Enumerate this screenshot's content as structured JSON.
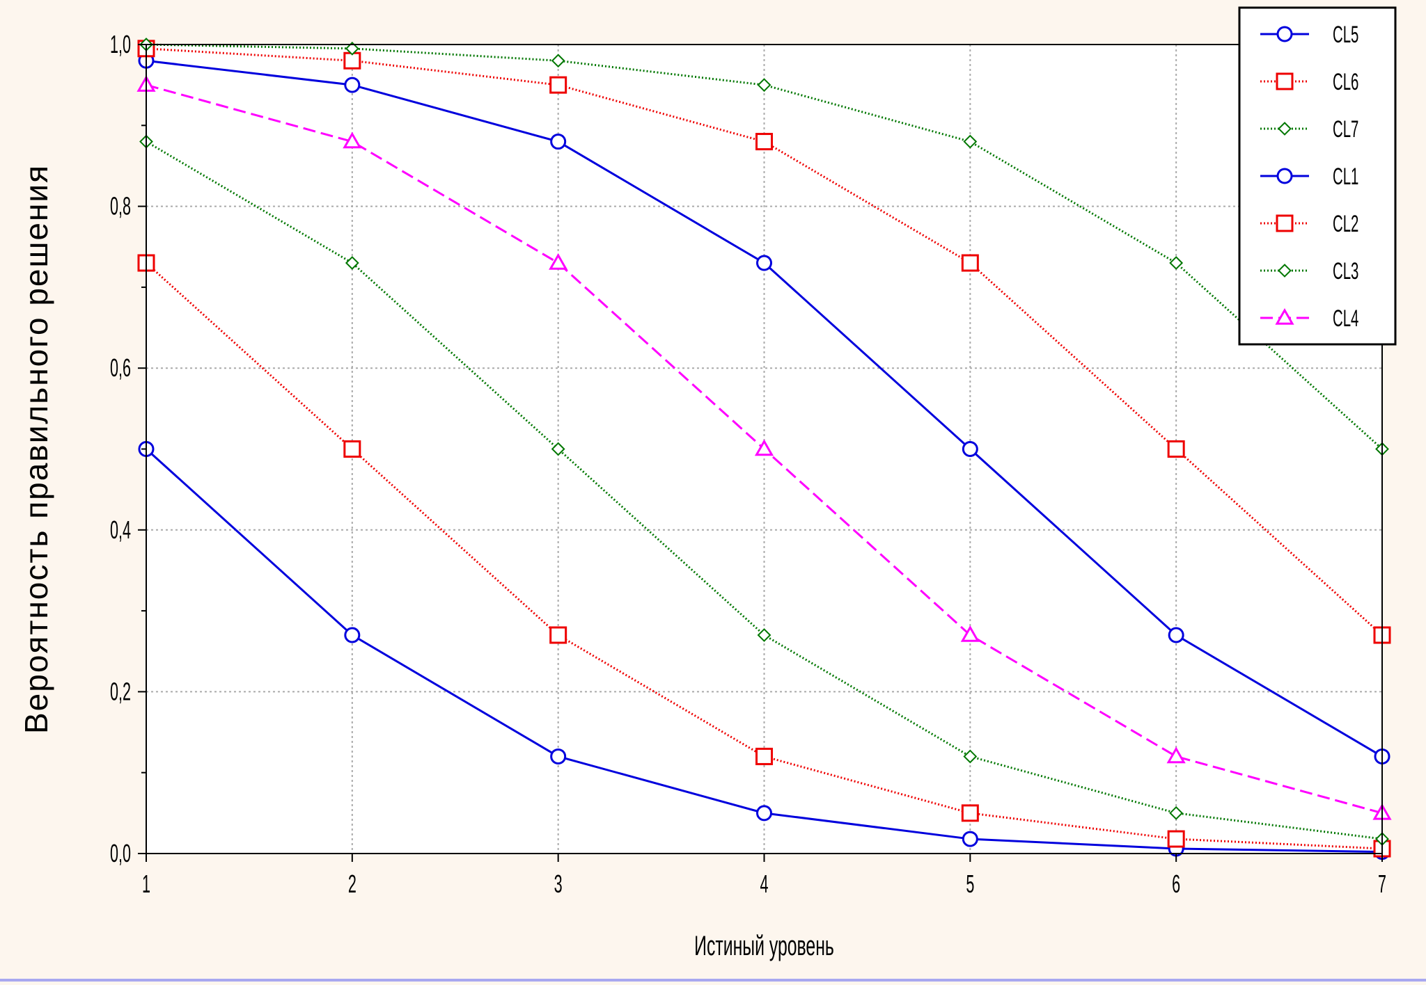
{
  "chart_data": {
    "type": "line",
    "title": "",
    "xlabel": "Истиный уровень",
    "ylabel": "Вероятность  правильного  решения",
    "xlim": [
      1,
      7
    ],
    "ylim": [
      0,
      1
    ],
    "x_ticks": [
      1,
      2,
      3,
      4,
      5,
      6,
      7
    ],
    "y_ticks": [
      "0,0",
      "0,2",
      "0,4",
      "0,6",
      "0,8",
      "1,0"
    ],
    "y_tick_values": [
      0,
      0.2,
      0.4,
      0.6,
      0.8,
      1.0
    ],
    "grid": true,
    "legend_position": "top-right",
    "x": [
      1,
      2,
      3,
      4,
      5,
      6,
      7
    ],
    "series": [
      {
        "name": "CL5",
        "color": "#0000dd",
        "marker": "circle",
        "line": "solid",
        "values": [
          0.98,
          0.95,
          0.88,
          0.73,
          0.5,
          0.27,
          0.12
        ]
      },
      {
        "name": "CL6",
        "color": "#ee0000",
        "marker": "square",
        "line": "dotted",
        "values": [
          0.995,
          0.98,
          0.95,
          0.88,
          0.73,
          0.5,
          0.27
        ]
      },
      {
        "name": "CL7",
        "color": "#007700",
        "marker": "diamond",
        "line": "dotted",
        "values": [
          1.0,
          0.995,
          0.98,
          0.95,
          0.88,
          0.73,
          0.5
        ]
      },
      {
        "name": "CL1",
        "color": "#0000dd",
        "marker": "circle",
        "line": "solid",
        "values": [
          0.5,
          0.27,
          0.12,
          0.05,
          0.018,
          0.006,
          0.002
        ]
      },
      {
        "name": "CL2",
        "color": "#ee0000",
        "marker": "square",
        "line": "dotted",
        "values": [
          0.73,
          0.5,
          0.27,
          0.12,
          0.05,
          0.018,
          0.006
        ]
      },
      {
        "name": "CL3",
        "color": "#007700",
        "marker": "diamond",
        "line": "dotted",
        "values": [
          0.88,
          0.73,
          0.5,
          0.27,
          0.12,
          0.05,
          0.018
        ]
      },
      {
        "name": "CL4",
        "color": "#ff00ff",
        "marker": "triangle",
        "line": "dashed",
        "values": [
          0.95,
          0.88,
          0.73,
          0.5,
          0.27,
          0.12,
          0.05
        ]
      }
    ]
  }
}
